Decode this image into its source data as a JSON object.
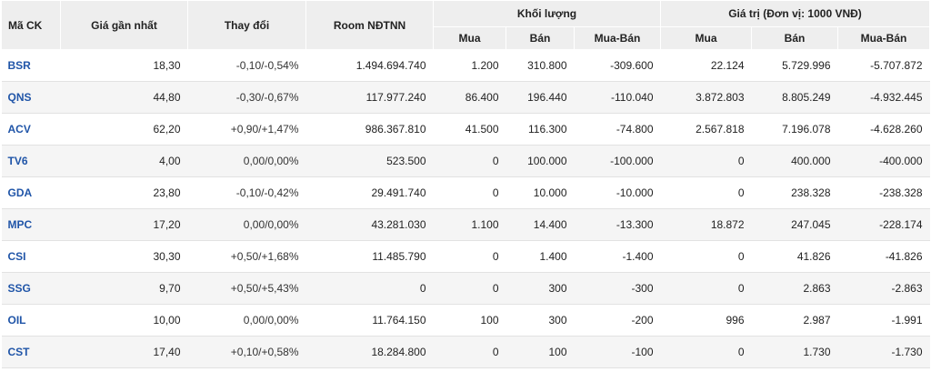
{
  "headers": {
    "symbol": "Mã CK",
    "last_price": "Giá gần nhất",
    "change": "Thay đổi",
    "foreign_room": "Room NĐTNN",
    "volume_group": "Khối lượng",
    "value_group": "Giá trị (Đơn vị: 1000 VNĐ)",
    "buy": "Mua",
    "sell": "Bán",
    "net": "Mua-Bán"
  },
  "rows": [
    {
      "symbol": "BSR",
      "price": "18,30",
      "change": "-0,10/-0,54%",
      "trend": "down",
      "room": "1.494.694.740",
      "vol_buy": "1.200",
      "vol_sell": "310.800",
      "vol_net": "-309.600",
      "val_buy": "22.124",
      "val_sell": "5.729.996",
      "val_net": "-5.707.872"
    },
    {
      "symbol": "QNS",
      "price": "44,80",
      "change": "-0,30/-0,67%",
      "trend": "down",
      "room": "117.977.240",
      "vol_buy": "86.400",
      "vol_sell": "196.440",
      "vol_net": "-110.040",
      "val_buy": "3.872.803",
      "val_sell": "8.805.249",
      "val_net": "-4.932.445"
    },
    {
      "symbol": "ACV",
      "price": "62,20",
      "change": "+0,90/+1,47%",
      "trend": "up",
      "room": "986.367.810",
      "vol_buy": "41.500",
      "vol_sell": "116.300",
      "vol_net": "-74.800",
      "val_buy": "2.567.818",
      "val_sell": "7.196.078",
      "val_net": "-4.628.260"
    },
    {
      "symbol": "TV6",
      "price": "4,00",
      "change": "0,00/0,00%",
      "trend": "ref",
      "room": "523.500",
      "vol_buy": "0",
      "vol_sell": "100.000",
      "vol_net": "-100.000",
      "val_buy": "0",
      "val_sell": "400.000",
      "val_net": "-400.000"
    },
    {
      "symbol": "GDA",
      "price": "23,80",
      "change": "-0,10/-0,42%",
      "trend": "down",
      "room": "29.491.740",
      "vol_buy": "0",
      "vol_sell": "10.000",
      "vol_net": "-10.000",
      "val_buy": "0",
      "val_sell": "238.328",
      "val_net": "-238.328"
    },
    {
      "symbol": "MPC",
      "price": "17,20",
      "change": "0,00/0,00%",
      "trend": "ref",
      "room": "43.281.030",
      "vol_buy": "1.100",
      "vol_sell": "14.400",
      "vol_net": "-13.300",
      "val_buy": "18.872",
      "val_sell": "247.045",
      "val_net": "-228.174"
    },
    {
      "symbol": "CSI",
      "price": "30,30",
      "change": "+0,50/+1,68%",
      "trend": "up",
      "room": "11.485.790",
      "vol_buy": "0",
      "vol_sell": "1.400",
      "vol_net": "-1.400",
      "val_buy": "0",
      "val_sell": "41.826",
      "val_net": "-41.826"
    },
    {
      "symbol": "SSG",
      "price": "9,70",
      "change": "+0,50/+5,43%",
      "trend": "up",
      "room": "0",
      "vol_buy": "0",
      "vol_sell": "300",
      "vol_net": "-300",
      "val_buy": "0",
      "val_sell": "2.863",
      "val_net": "-2.863"
    },
    {
      "symbol": "OIL",
      "price": "10,00",
      "change": "0,00/0,00%",
      "trend": "ref",
      "room": "11.764.150",
      "vol_buy": "100",
      "vol_sell": "300",
      "vol_net": "-200",
      "val_buy": "996",
      "val_sell": "2.987",
      "val_net": "-1.991"
    },
    {
      "symbol": "CST",
      "price": "17,40",
      "change": "+0,10/+0,58%",
      "trend": "up",
      "room": "18.284.800",
      "vol_buy": "0",
      "vol_sell": "100",
      "vol_net": "-100",
      "val_buy": "0",
      "val_sell": "1.730",
      "val_net": "-1.730"
    }
  ],
  "colors": {
    "symbol": "#2055a8",
    "up": "#1a9b1a",
    "down": "#c0272d",
    "header_bg": "#eeeeee",
    "stripe": "#f5f5f5"
  }
}
